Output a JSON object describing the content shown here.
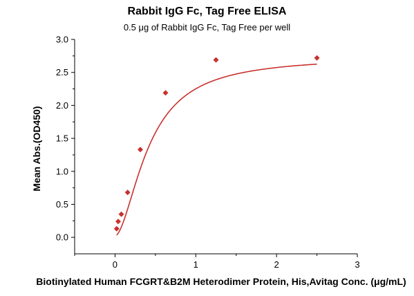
{
  "chart_data": {
    "type": "scatter",
    "title": "Rabbit IgG Fc, Tag Free ELISA",
    "subtitle": "0.5 μg of Rabbit IgG Fc, Tag Free per well",
    "xlabel": "Biotinylated Human FCGRT&B2M Heterodimer Protein, His,Avitag Conc. (μg/mL)",
    "ylabel": "Mean Abs.(OD450)",
    "xlim": [
      -0.5,
      3.0
    ],
    "ylim": [
      -0.25,
      3.0
    ],
    "xticks": [
      "0",
      "1",
      "2",
      "3"
    ],
    "yticks": [
      "0.0",
      "0.5",
      "1.0",
      "1.5",
      "2.0",
      "2.5",
      "3.0"
    ],
    "grid": false,
    "marker_color": "#c8312d",
    "line_color": "#c8312d",
    "series": [
      {
        "x": [
          0.02,
          0.039,
          0.078,
          0.156,
          0.313,
          0.625,
          1.25,
          2.5
        ],
        "y": [
          0.13,
          0.24,
          0.35,
          0.68,
          1.33,
          2.19,
          2.69,
          2.72
        ]
      }
    ]
  }
}
